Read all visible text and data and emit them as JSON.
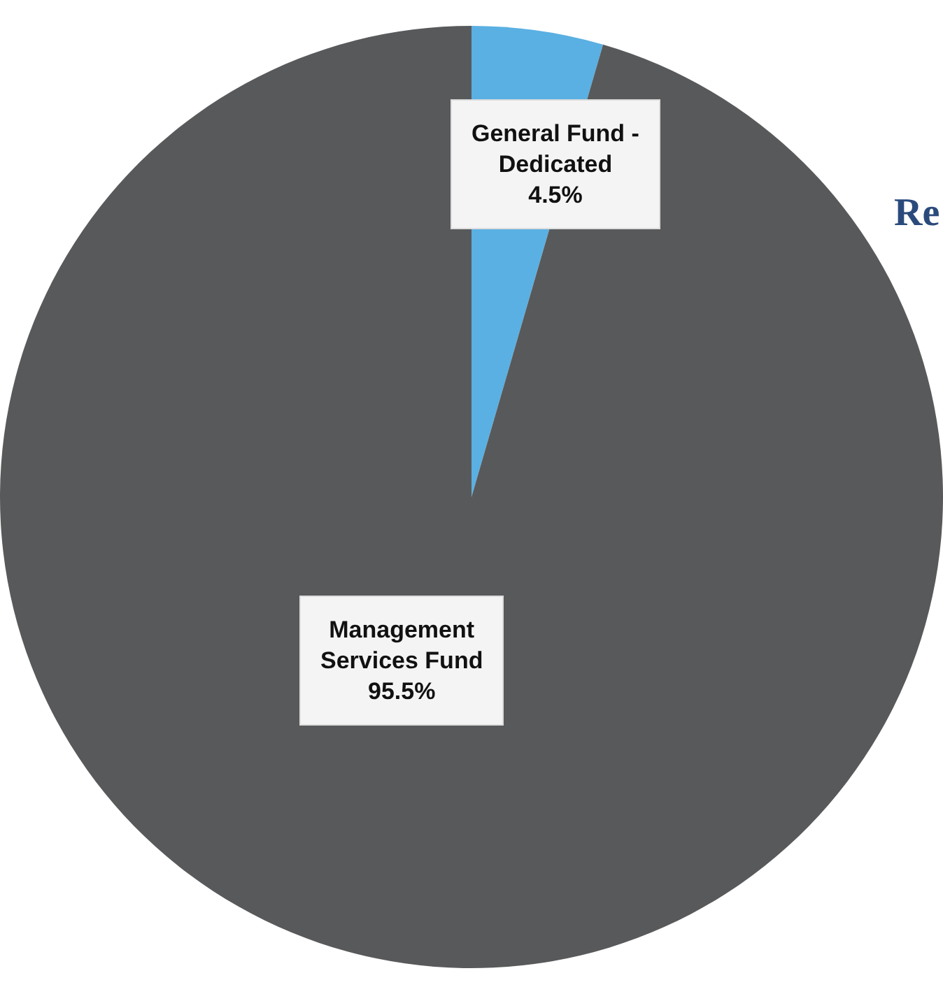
{
  "chart_data": {
    "type": "pie",
    "categories": [
      "General Fund - Dedicated",
      "Management Services Fund"
    ],
    "values": [
      4.5,
      95.5
    ],
    "colors": [
      "#5ab0e2",
      "#58595b"
    ],
    "value_labels": [
      "4.5%",
      "95.5%"
    ],
    "legend": false,
    "annotations": [
      "Re"
    ]
  }
}
